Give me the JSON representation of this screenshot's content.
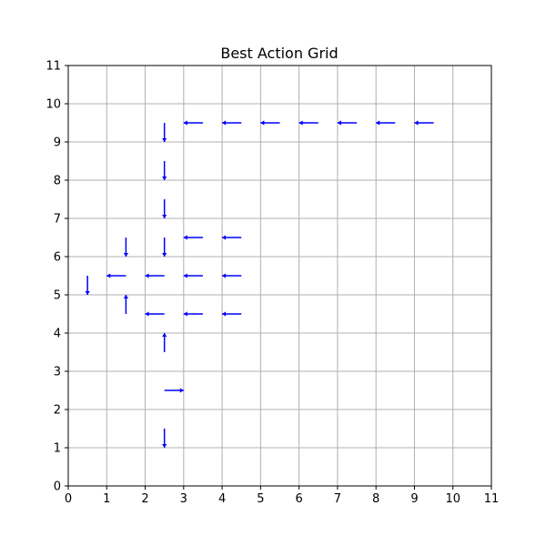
{
  "chart_data": {
    "type": "quiver",
    "title": "Best Action Grid",
    "xlabel": "",
    "ylabel": "",
    "xlim": [
      0,
      11
    ],
    "ylim": [
      0,
      11
    ],
    "xticks": [
      "0",
      "1",
      "2",
      "3",
      "4",
      "5",
      "6",
      "7",
      "8",
      "9",
      "10",
      "11"
    ],
    "yticks": [
      "0",
      "1",
      "2",
      "3",
      "4",
      "5",
      "6",
      "7",
      "8",
      "9",
      "10",
      "11"
    ],
    "grid": true,
    "arrow_color": "#0000ff",
    "arrows": [
      {
        "x": 9.5,
        "y": 9.5,
        "dx": -0.5,
        "dy": 0
      },
      {
        "x": 8.5,
        "y": 9.5,
        "dx": -0.5,
        "dy": 0
      },
      {
        "x": 7.5,
        "y": 9.5,
        "dx": -0.5,
        "dy": 0
      },
      {
        "x": 6.5,
        "y": 9.5,
        "dx": -0.5,
        "dy": 0
      },
      {
        "x": 5.5,
        "y": 9.5,
        "dx": -0.5,
        "dy": 0
      },
      {
        "x": 4.5,
        "y": 9.5,
        "dx": -0.5,
        "dy": 0
      },
      {
        "x": 3.5,
        "y": 9.5,
        "dx": -0.5,
        "dy": 0
      },
      {
        "x": 2.5,
        "y": 9.5,
        "dx": 0,
        "dy": -0.5
      },
      {
        "x": 2.5,
        "y": 8.5,
        "dx": 0,
        "dy": -0.5
      },
      {
        "x": 2.5,
        "y": 7.5,
        "dx": 0,
        "dy": -0.5
      },
      {
        "x": 2.5,
        "y": 6.5,
        "dx": 0,
        "dy": -0.5
      },
      {
        "x": 1.5,
        "y": 6.5,
        "dx": 0,
        "dy": -0.5
      },
      {
        "x": 3.5,
        "y": 6.5,
        "dx": -0.5,
        "dy": 0
      },
      {
        "x": 4.5,
        "y": 6.5,
        "dx": -0.5,
        "dy": 0
      },
      {
        "x": 0.5,
        "y": 5.5,
        "dx": 0,
        "dy": -0.5
      },
      {
        "x": 1.5,
        "y": 5.5,
        "dx": -0.5,
        "dy": 0
      },
      {
        "x": 2.5,
        "y": 5.5,
        "dx": -0.5,
        "dy": 0
      },
      {
        "x": 3.5,
        "y": 5.5,
        "dx": -0.5,
        "dy": 0
      },
      {
        "x": 4.5,
        "y": 5.5,
        "dx": -0.5,
        "dy": 0
      },
      {
        "x": 1.5,
        "y": 4.5,
        "dx": 0,
        "dy": 0.5
      },
      {
        "x": 2.5,
        "y": 4.5,
        "dx": -0.5,
        "dy": 0
      },
      {
        "x": 3.5,
        "y": 4.5,
        "dx": -0.5,
        "dy": 0
      },
      {
        "x": 4.5,
        "y": 4.5,
        "dx": -0.5,
        "dy": 0
      },
      {
        "x": 2.5,
        "y": 3.5,
        "dx": 0,
        "dy": 0.5
      },
      {
        "x": 2.5,
        "y": 2.5,
        "dx": 0.5,
        "dy": 0
      },
      {
        "x": 2.5,
        "y": 1.5,
        "dx": 0,
        "dy": -0.5
      }
    ]
  }
}
